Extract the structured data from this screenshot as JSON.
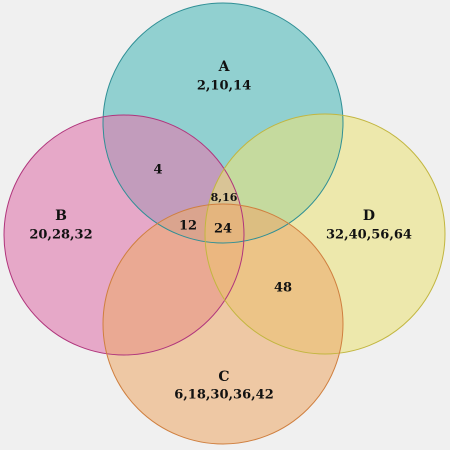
{
  "colors": {
    "background": "#f0f0f0",
    "A": {
      "fill": "#6cc3c3",
      "stroke": "#2f8f95"
    },
    "B": {
      "fill": "#e07db0",
      "stroke": "#b0357c"
    },
    "C": {
      "fill": "#ecab6c",
      "stroke": "#cf7f3f"
    },
    "D": {
      "fill": "#ebe27a",
      "stroke": "#c2b640"
    }
  },
  "sets": {
    "A": {
      "name": "A",
      "elements": "2,10,14"
    },
    "B": {
      "name": "B",
      "elements": "20,28,32"
    },
    "C": {
      "name": "C",
      "elements": "6,18,30,36,42"
    },
    "D": {
      "name": "D",
      "elements": "32,40,56,64"
    }
  },
  "regions": {
    "AB": "4",
    "ABD": "8,16",
    "BC": "12",
    "ABCD": "24",
    "CD": "48"
  }
}
